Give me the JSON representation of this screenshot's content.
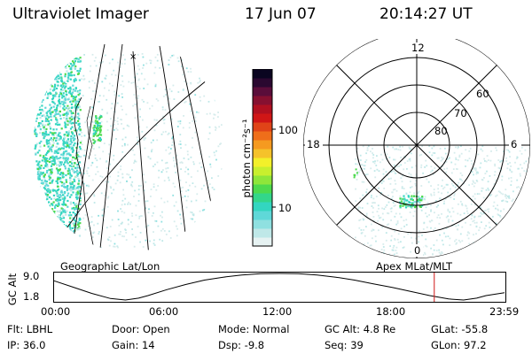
{
  "header": {
    "instrument": "Ultraviolet Imager",
    "date": "17 Jun 07",
    "time": "20:14:27 UT"
  },
  "colorbar": {
    "unit_label": "photon cm⁻²s⁻¹",
    "ticks": [
      "100",
      "10"
    ],
    "colors": [
      "#e6f2f2",
      "#bfe8e8",
      "#8fe0e0",
      "#5fd8d8",
      "#33d6c0",
      "#33d68a",
      "#4dda4d",
      "#8ee63a",
      "#c8ef2e",
      "#f3f02a",
      "#f5c22a",
      "#f59a20",
      "#ef6e1a",
      "#e04418",
      "#d01616",
      "#b01020",
      "#861030",
      "#5a0d3a",
      "#2a0830",
      "#0a0520"
    ]
  },
  "geo_panel": {
    "caption": "Geographic Lat/Lon"
  },
  "polar_panel": {
    "caption": "Apex MLat/MLT",
    "mlt_labels": {
      "top": "12",
      "left": "18",
      "right": "6",
      "bottom": "0"
    },
    "ring_labels": [
      "60",
      "70",
      "80"
    ]
  },
  "altitude_plot": {
    "ylabel": "GC Alt",
    "y_ticks": [
      "9.0",
      "1.8"
    ],
    "x_ticks": [
      "00:00",
      "06:00",
      "12:00",
      "18:00",
      "23:59"
    ],
    "current_time_hours": 20.24
  },
  "status": {
    "flt": "Flt: LBHL",
    "ip": "IP: 36.0",
    "door": "Door: Open",
    "gain": "Gain: 14",
    "mode": "Mode: Normal",
    "dsp": "Dsp:    -9.8",
    "gc_alt": "GC Alt: 4.8 Re",
    "seq": "Seq: 39",
    "glat": "GLat: -55.8",
    "glon": "GLon:  97.2"
  }
}
